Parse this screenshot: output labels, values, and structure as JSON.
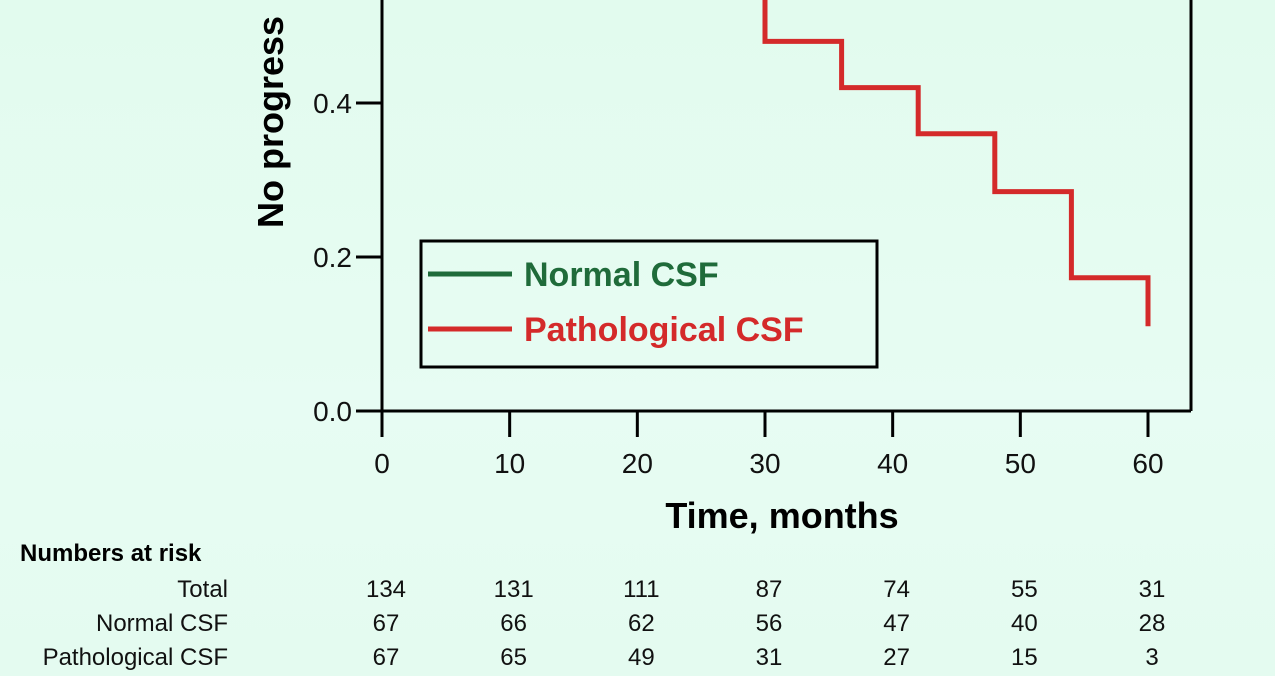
{
  "chart_data": {
    "type": "line",
    "title": "",
    "xlabel": "Time, months",
    "ylabel": "No progress",
    "xlim": [
      0,
      63
    ],
    "ylim": [
      0,
      0.54
    ],
    "x_ticks": [
      0,
      10,
      20,
      30,
      40,
      50,
      60
    ],
    "y_ticks": [
      "0.0",
      "0.2",
      "0.4"
    ],
    "grid": false,
    "legend_position": "bottom-left",
    "series": [
      {
        "name": "Normal CSF",
        "color": "#1f6b3a",
        "step": true,
        "points": []
      },
      {
        "name": "Pathological CSF",
        "color": "#d42a2a",
        "step": true,
        "points": [
          [
            30,
            0.54
          ],
          [
            30,
            0.48
          ],
          [
            36,
            0.48
          ],
          [
            36,
            0.42
          ],
          [
            42,
            0.42
          ],
          [
            42,
            0.36
          ],
          [
            48,
            0.36
          ],
          [
            48,
            0.285
          ],
          [
            54,
            0.285
          ],
          [
            54,
            0.173
          ],
          [
            60,
            0.173
          ],
          [
            60,
            0.11
          ]
        ]
      }
    ]
  },
  "risk_table": {
    "title": "Numbers at risk",
    "times": [
      0,
      10,
      20,
      30,
      40,
      50,
      60
    ],
    "rows": [
      {
        "label": "Total",
        "values": [
          "134",
          "131",
          "111",
          "87",
          "74",
          "55",
          "31"
        ]
      },
      {
        "label": "Normal CSF",
        "values": [
          "67",
          "66",
          "62",
          "56",
          "47",
          "40",
          "28"
        ]
      },
      {
        "label": "Pathological CSF",
        "values": [
          "67",
          "65",
          "49",
          "31",
          "27",
          "15",
          "3"
        ]
      }
    ]
  }
}
